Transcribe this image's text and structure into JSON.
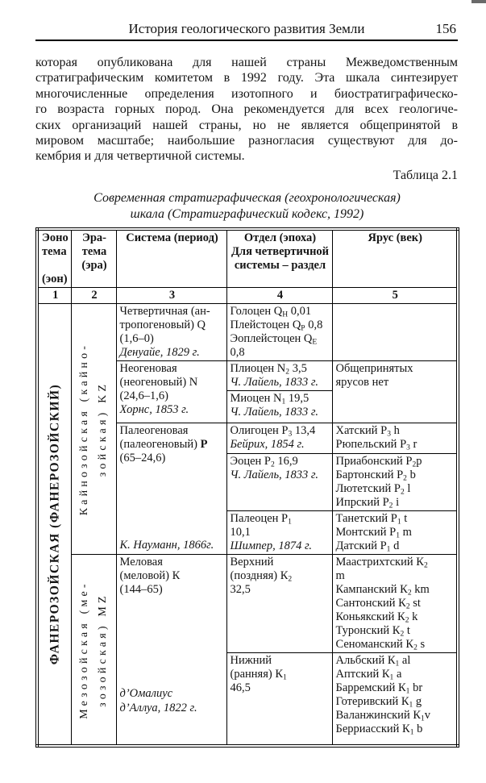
{
  "header": {
    "title": "История геологического развития Земли",
    "page_number": "156"
  },
  "intro": {
    "justified_lines": [
      "которая опубликована для нашей страны Межведомственным",
      "стратиграфическим комитетом в 1992 году. Эта шкала синтезирует",
      "многочисленные определения изотопного и биостратиграфическо-",
      "го возраста горных пород. Она рекомендуется для всех геологиче-",
      "ских организаций нашей страны, но не является общепринятой в",
      "мировом масштабе; наибольшие разногласия существуют для до-"
    ],
    "last_line": "кембрия и для четвертичной системы."
  },
  "table_caption": "Таблица 2.1",
  "table_title": {
    "line1": "Современная стратиграфическая (геохронологическая)",
    "line2": "шкала (Стратиграфический кодекс, 1992)"
  },
  "table": {
    "header": {
      "col1_lines": [
        "Эоно",
        "тема",
        "",
        "(эон)"
      ],
      "col2_lines": [
        "Эра-",
        "тема",
        "(эра)"
      ],
      "col3": "Система (период)",
      "col4_lines": [
        "Отдел (эпоха)",
        "Для четвертичной",
        "системы – раздел"
      ],
      "col5": "Ярус (век)",
      "numbers": [
        "1",
        "2",
        "3",
        "4",
        "5"
      ]
    },
    "eonotema_vertical": "ФАНЕРОЗОЙСКАЯ (ФАНЕРОЗОЙСКИЙ)",
    "eratema": {
      "cenozoic_lines": [
        "Кайнозойская (кайно-",
        "зойская) KZ"
      ],
      "mesozoic_lines": [
        "Мезозойская (ме-",
        "зозойская) MZ"
      ]
    },
    "systems": {
      "quaternary_lines": [
        "Четвертичная  (ан-",
        "тропогеновый)   Q",
        "(1,6–0)",
        "*Денуайе, 1829 г.*"
      ],
      "neogene_lines": [
        "Неогеновая",
        "(неогеновый) N",
        "(24,6–1,6)",
        "*Хорнс, 1853 г.*"
      ],
      "paleogene_lines": [
        "Палеогеновая",
        "(палеогеновый) **Р**",
        "(65–24,6)"
      ],
      "paleogene_author": "*К. Науманн, 1866г.*",
      "cretaceous_lines": [
        "Меловая",
        "(меловой) К",
        "(144–65)"
      ],
      "cretaceous_author_lines": [
        "*д’Омалиус*",
        "*д’Аллуа, 1822 г.*"
      ]
    },
    "series": {
      "quaternary_lines": [
        "Голоцен Q~H~ 0,01",
        "Плейстоцен Q~P~ 0,8",
        "Эоплейстоцен  Q~E~",
        "0,8"
      ],
      "pliocene_lines": [
        "Плиоцен N~2~ 3,5",
        "*Ч. Лайель, 1833 г.*"
      ],
      "miocene_lines": [
        "Миоцен N~1~ 19,5",
        "*Ч. Лайель, 1833 г.*"
      ],
      "oligocene_lines": [
        "Олигоцен Р~3~ 13,4",
        "*Бейрих, 1854 г.*"
      ],
      "eocene_lines": [
        "Эоцен Р~2~ 16,9",
        "*Ч. Лайель, 1833 г.*"
      ],
      "paleocene_lines": [
        "Палеоцен Р~1~",
        "10,1",
        "*Шимпер, 1874 г.*"
      ],
      "upper_cretaceous_lines": [
        "Верхний",
        "(поздняя) К~2~",
        "32,5"
      ],
      "lower_cretaceous_lines": [
        "Нижний",
        "(ранняя) К~1~",
        "46,5"
      ]
    },
    "stages": {
      "neogene_lines": [
        "Общепринятых",
        "ярусов нет"
      ],
      "oligocene_lines": [
        "Хатский Р~3~ h",
        "Рюпельский Р~3~ r"
      ],
      "eocene_lines": [
        "Приабонский Р~2~р",
        "Бартонский Р~2~ b",
        "Лютетский Р~2~ l",
        "Ипрский Р~2~ i"
      ],
      "paleocene_lines": [
        "Танетский Р~1~ t",
        "Монтский Р~1~ m",
        "Датский Р~1~ d"
      ],
      "upper_cretaceous_lines": [
        "Маастрихтский  К~2~",
        "m",
        "Кампанский К~2~ km",
        "Сантонский К~2~ st",
        "Коньякский К~2~ k",
        "Туронский К~2~ t",
        "Сеноманский К~2~ s"
      ],
      "lower_cretaceous_lines": [
        "Альбский К~1~ al",
        "Аптский К~1~ a",
        "Барремский К~1~ br",
        "Готеривский К~1~ g",
        "Валанжинский К~1~v",
        "Берриасский К~1~ b"
      ]
    }
  }
}
